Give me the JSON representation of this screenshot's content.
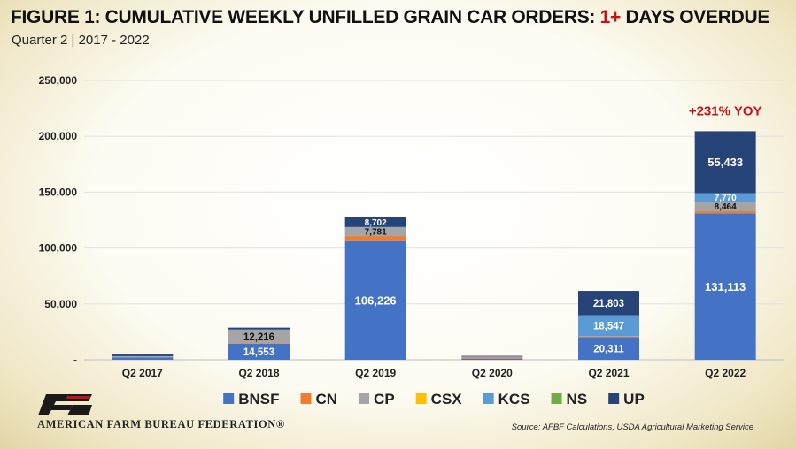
{
  "header": {
    "title_prefix": "FIGURE 1: CUMULATIVE WEEKLY UNFILLED GRAIN CAR ORDERS: ",
    "title_highlight": "1+",
    "title_suffix": " DAYS OVERDUE",
    "subtitle": "Quarter 2 | 2017 - 2022"
  },
  "chart_data": {
    "type": "bar",
    "stacked": true,
    "title": "FIGURE 1: CUMULATIVE WEEKLY UNFILLED GRAIN CAR ORDERS: 1+ DAYS OVERDUE",
    "subtitle": "Quarter 2 | 2017 - 2022",
    "xlabel": "",
    "ylabel": "",
    "ylim": [
      0,
      250000
    ],
    "yticks": [
      0,
      50000,
      100000,
      150000,
      200000,
      250000
    ],
    "ytick_labels": [
      "-",
      "50,000",
      "100,000",
      "150,000",
      "200,000",
      "250,000"
    ],
    "grid": true,
    "legend_position": "bottom",
    "categories": [
      "Q2 2017",
      "Q2 2018",
      "Q2 2019",
      "Q2 2020",
      "Q2 2021",
      "Q2 2022"
    ],
    "series": [
      {
        "name": "BNSF",
        "color": "#4472c4",
        "values": [
          2000,
          14553,
          106226,
          1000,
          20311,
          131113
        ],
        "labels": [
          "",
          "14,553",
          "106,226",
          "",
          "20,311",
          "131,113"
        ]
      },
      {
        "name": "CN",
        "color": "#ed7d31",
        "values": [
          0,
          200,
          4500,
          1200,
          600,
          1800
        ],
        "labels": [
          "",
          "",
          "",
          "",
          "",
          ""
        ]
      },
      {
        "name": "CP",
        "color": "#a5a5a5",
        "values": [
          1200,
          12216,
          7781,
          300,
          400,
          8464
        ],
        "labels": [
          "",
          "12,216",
          "7,781",
          "",
          "",
          "8,464"
        ]
      },
      {
        "name": "CSX",
        "color": "#ffc000",
        "values": [
          0,
          0,
          0,
          0,
          0,
          0
        ],
        "labels": [
          "",
          "",
          "",
          "",
          "",
          ""
        ]
      },
      {
        "name": "KCS",
        "color": "#5b9bd5",
        "values": [
          0,
          300,
          300,
          400,
          18547,
          7770
        ],
        "labels": [
          "",
          "",
          "",
          "",
          "18,547",
          "7,770"
        ]
      },
      {
        "name": "NS",
        "color": "#70ad47",
        "values": [
          0,
          0,
          0,
          0,
          0,
          0
        ],
        "labels": [
          "",
          "",
          "",
          "",
          "",
          ""
        ]
      },
      {
        "name": "UP",
        "color": "#264478",
        "values": [
          1500,
          1500,
          8702,
          600,
          21803,
          55433
        ],
        "labels": [
          "",
          "",
          "8,702",
          "",
          "21,803",
          "55,433"
        ]
      }
    ],
    "annotations": [
      {
        "text": "+231% YOY",
        "category": "Q2 2022",
        "color": "#c0141a"
      }
    ]
  },
  "footer": {
    "logo_icon": "farm-bureau-fb-icon",
    "logo_text": "AMERICAN FARM BUREAU FEDERATION®",
    "source": "Source: AFBF Calculations, USDA Agricultural Marketing Service"
  }
}
